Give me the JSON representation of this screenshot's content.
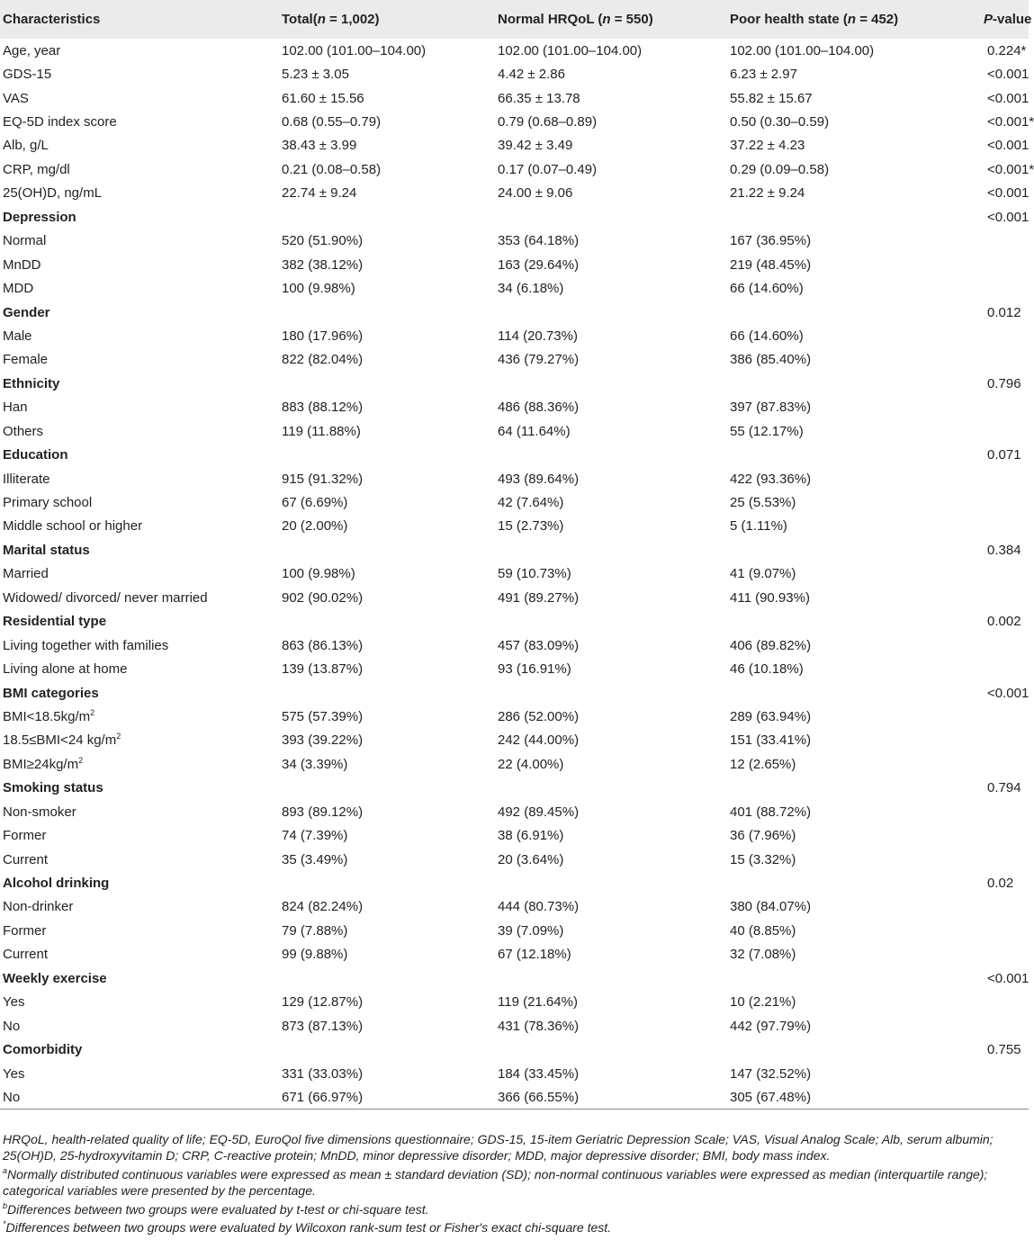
{
  "table": {
    "headers": {
      "characteristics": "Characteristics",
      "total": {
        "prefix": "Total(",
        "n": "n",
        "suffix": " = 1,002)"
      },
      "normal": {
        "prefix": "Normal HRQoL (",
        "n": "n",
        "suffix": " = 550)"
      },
      "poor": {
        "prefix": "Poor health state (",
        "n": "n",
        "suffix": " = 452)"
      },
      "pvalue": {
        "p": "P",
        "suffix": "-value"
      }
    },
    "rows": [
      {
        "type": "data",
        "label": "Age, year",
        "total": "102.00 (101.00–104.00)",
        "normal": "102.00 (101.00–104.00)",
        "poor": "102.00 (101.00–104.00)",
        "p": "0.224*"
      },
      {
        "type": "data",
        "label": "GDS-15",
        "total": "5.23 ± 3.05",
        "normal": "4.42 ± 2.86",
        "poor": "6.23 ± 2.97",
        "p": "<0.001"
      },
      {
        "type": "data",
        "label": "VAS",
        "total": "61.60 ± 15.56",
        "normal": "66.35 ± 13.78",
        "poor": "55.82 ± 15.67",
        "p": "<0.001"
      },
      {
        "type": "data",
        "label": "EQ-5D index score",
        "total": "0.68 (0.55–0.79)",
        "normal": "0.79 (0.68–0.89)",
        "poor": "0.50 (0.30–0.59)",
        "p": "<0.001*"
      },
      {
        "type": "data",
        "label": "Alb, g/L",
        "total": "38.43 ± 3.99",
        "normal": "39.42 ± 3.49",
        "poor": "37.22 ± 4.23",
        "p": "<0.001"
      },
      {
        "type": "data",
        "label": "CRP, mg/dl",
        "total": "0.21 (0.08–0.58)",
        "normal": "0.17 (0.07–0.49)",
        "poor": "0.29 (0.09–0.58)",
        "p": "<0.001*"
      },
      {
        "type": "data",
        "label": "25(OH)D, ng/mL",
        "total": "22.74 ± 9.24",
        "normal": "24.00 ± 9.06",
        "poor": "21.22 ± 9.24",
        "p": "<0.001"
      },
      {
        "type": "group",
        "label": "Depression",
        "total": "",
        "normal": "",
        "poor": "",
        "p": "<0.001"
      },
      {
        "type": "data",
        "label": "Normal",
        "total": "520 (51.90%)",
        "normal": "353 (64.18%)",
        "poor": "167 (36.95%)",
        "p": ""
      },
      {
        "type": "data",
        "label": "MnDD",
        "total": "382 (38.12%)",
        "normal": "163 (29.64%)",
        "poor": "219 (48.45%)",
        "p": ""
      },
      {
        "type": "data",
        "label": "MDD",
        "total": "100 (9.98%)",
        "normal": "34 (6.18%)",
        "poor": "66 (14.60%)",
        "p": ""
      },
      {
        "type": "group",
        "label": "Gender",
        "total": "",
        "normal": "",
        "poor": "",
        "p": "0.012"
      },
      {
        "type": "data",
        "label": "Male",
        "total": "180 (17.96%)",
        "normal": "114 (20.73%)",
        "poor": "66 (14.60%)",
        "p": ""
      },
      {
        "type": "data",
        "label": "Female",
        "total": "822 (82.04%)",
        "normal": "436 (79.27%)",
        "poor": "386 (85.40%)",
        "p": ""
      },
      {
        "type": "group",
        "label": "Ethnicity",
        "total": "",
        "normal": "",
        "poor": "",
        "p": "0.796"
      },
      {
        "type": "data",
        "label": "Han",
        "total": "883 (88.12%)",
        "normal": "486 (88.36%)",
        "poor": "397 (87.83%)",
        "p": ""
      },
      {
        "type": "data",
        "label": "Others",
        "total": "119 (11.88%)",
        "normal": "64 (11.64%)",
        "poor": "55 (12.17%)",
        "p": ""
      },
      {
        "type": "group",
        "label": "Education",
        "total": "",
        "normal": "",
        "poor": "",
        "p": "0.071"
      },
      {
        "type": "data",
        "label": "Illiterate",
        "total": "915 (91.32%)",
        "normal": "493 (89.64%)",
        "poor": "422 (93.36%)",
        "p": ""
      },
      {
        "type": "data",
        "label": "Primary school",
        "total": "67 (6.69%)",
        "normal": "42 (7.64%)",
        "poor": "25 (5.53%)",
        "p": ""
      },
      {
        "type": "data",
        "label": "Middle school or higher",
        "total": "20 (2.00%)",
        "normal": "15 (2.73%)",
        "poor": "5 (1.11%)",
        "p": ""
      },
      {
        "type": "group",
        "label": "Marital status",
        "total": "",
        "normal": "",
        "poor": "",
        "p": "0.384"
      },
      {
        "type": "data",
        "label": "Married",
        "total": "100 (9.98%)",
        "normal": "59 (10.73%)",
        "poor": "41 (9.07%)",
        "p": ""
      },
      {
        "type": "data",
        "label": "Widowed/ divorced/ never married",
        "total": "902 (90.02%)",
        "normal": "491 (89.27%)",
        "poor": "411 (90.93%)",
        "p": ""
      },
      {
        "type": "group",
        "label": "Residential type",
        "total": "",
        "normal": "",
        "poor": "",
        "p": "0.002"
      },
      {
        "type": "data",
        "label": "Living together with families",
        "total": "863 (86.13%)",
        "normal": "457 (83.09%)",
        "poor": "406 (89.82%)",
        "p": ""
      },
      {
        "type": "data",
        "label": "Living alone at home",
        "total": "139 (13.87%)",
        "normal": "93 (16.91%)",
        "poor": "46 (10.18%)",
        "p": ""
      },
      {
        "type": "group",
        "label": "BMI categories",
        "total": "",
        "normal": "",
        "poor": "",
        "p": "<0.001"
      },
      {
        "type": "data",
        "label": "BMI<18.5kg/m",
        "sup": "2",
        "total": "575 (57.39%)",
        "normal": "286 (52.00%)",
        "poor": "289 (63.94%)",
        "p": ""
      },
      {
        "type": "data",
        "label": "18.5≤BMI<24 kg/m",
        "sup": "2",
        "total": "393 (39.22%)",
        "normal": "242 (44.00%)",
        "poor": "151 (33.41%)",
        "p": ""
      },
      {
        "type": "data",
        "label": "BMI≥24kg/m",
        "sup": "2",
        "total": "34 (3.39%)",
        "normal": "22 (4.00%)",
        "poor": "12 (2.65%)",
        "p": ""
      },
      {
        "type": "group",
        "label": "Smoking status",
        "total": "",
        "normal": "",
        "poor": "",
        "p": "0.794"
      },
      {
        "type": "data",
        "label": "Non-smoker",
        "total": "893 (89.12%)",
        "normal": "492 (89.45%)",
        "poor": "401 (88.72%)",
        "p": ""
      },
      {
        "type": "data",
        "label": "Former",
        "total": "74 (7.39%)",
        "normal": "38 (6.91%)",
        "poor": "36 (7.96%)",
        "p": ""
      },
      {
        "type": "data",
        "label": "Current",
        "total": "35 (3.49%)",
        "normal": "20 (3.64%)",
        "poor": "15 (3.32%)",
        "p": ""
      },
      {
        "type": "group",
        "label": "Alcohol drinking",
        "total": "",
        "normal": "",
        "poor": "",
        "p": "0.02"
      },
      {
        "type": "data",
        "label": "Non-drinker",
        "total": "824 (82.24%)",
        "normal": "444 (80.73%)",
        "poor": "380 (84.07%)",
        "p": ""
      },
      {
        "type": "data",
        "label": "Former",
        "total": "79 (7.88%)",
        "normal": "39 (7.09%)",
        "poor": "40 (8.85%)",
        "p": ""
      },
      {
        "type": "data",
        "label": "Current",
        "total": "99 (9.88%)",
        "normal": "67 (12.18%)",
        "poor": "32 (7.08%)",
        "p": ""
      },
      {
        "type": "group",
        "label": "Weekly exercise",
        "total": "",
        "normal": "",
        "poor": "",
        "p": "<0.001"
      },
      {
        "type": "data",
        "label": "Yes",
        "total": "129 (12.87%)",
        "normal": "119 (21.64%)",
        "poor": "10 (2.21%)",
        "p": ""
      },
      {
        "type": "data",
        "label": "No",
        "total": "873 (87.13%)",
        "normal": "431 (78.36%)",
        "poor": "442 (97.79%)",
        "p": ""
      },
      {
        "type": "group",
        "label": "Comorbidity",
        "total": "",
        "normal": "",
        "poor": "",
        "p": "0.755"
      },
      {
        "type": "data",
        "label": "Yes",
        "total": "331 (33.03%)",
        "normal": "184 (33.45%)",
        "poor": "147 (32.52%)",
        "p": ""
      },
      {
        "type": "data",
        "label": "No",
        "total": "671 (66.97%)",
        "normal": "366 (66.55%)",
        "poor": "305 (67.48%)",
        "p": ""
      }
    ]
  },
  "footnotes": {
    "abbreviations": "HRQoL, health-related quality of life; EQ-5D, EuroQol five dimensions questionnaire; GDS-15, 15-item Geriatric Depression Scale; VAS, Visual Analog Scale; Alb, serum albumin; 25(OH)D, 25-hydroxyvitamin D; CRP, C-reactive protein; MnDD, minor depressive disorder; MDD, major depressive disorder; BMI, body mass index.",
    "a_mark": "a",
    "a_text": "Normally distributed continuous variables were expressed as mean ± standard deviation (SD); non-normal continuous variables were expressed as median (interquartile range); categorical variables were presented by the percentage.",
    "b_mark": "b",
    "b_text": "Differences between two groups were evaluated by t-test or chi-square test.",
    "star_mark": "*",
    "star_text": "Differences between two groups were evaluated by Wilcoxon rank-sum test or Fisher's exact chi-square test."
  }
}
